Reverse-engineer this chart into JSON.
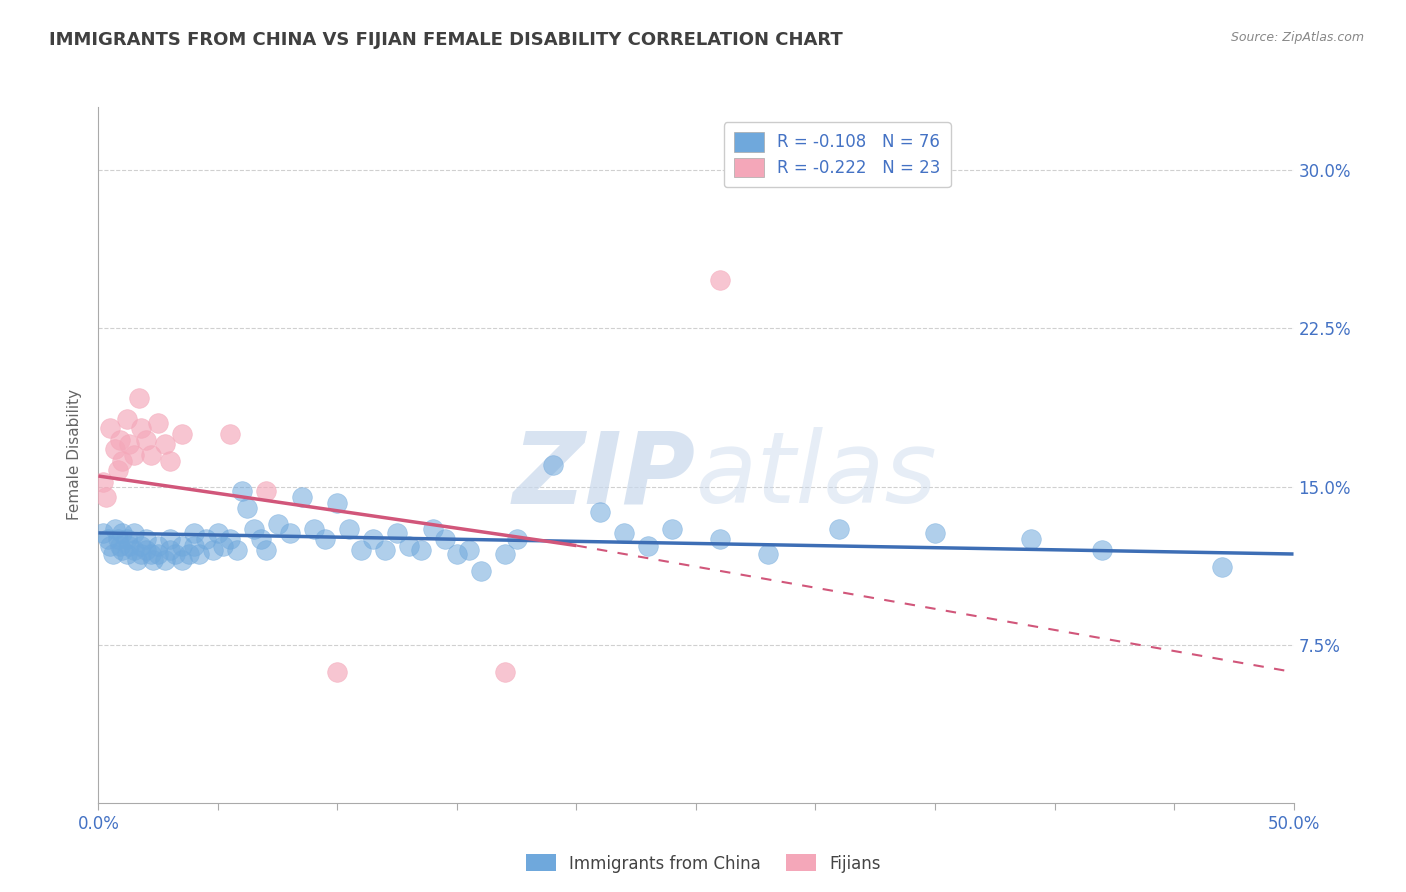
{
  "title": "IMMIGRANTS FROM CHINA VS FIJIAN FEMALE DISABILITY CORRELATION CHART",
  "source": "Source: ZipAtlas.com",
  "ylabel": "Female Disability",
  "ytick_labels": [
    "7.5%",
    "15.0%",
    "22.5%",
    "30.0%"
  ],
  "ytick_values": [
    0.075,
    0.15,
    0.225,
    0.3
  ],
  "xlim": [
    0.0,
    0.5
  ],
  "ylim": [
    0.0,
    0.33
  ],
  "legend_blue_r": "R = -0.108",
  "legend_blue_n": "N = 76",
  "legend_pink_r": "R = -0.222",
  "legend_pink_n": "N = 23",
  "color_blue": "#6fa8dc",
  "color_pink": "#f4a7b9",
  "color_blue_line": "#3d6eb5",
  "color_pink_line": "#d1567a",
  "scatter_blue": [
    [
      0.002,
      0.128
    ],
    [
      0.004,
      0.125
    ],
    [
      0.005,
      0.122
    ],
    [
      0.006,
      0.118
    ],
    [
      0.007,
      0.13
    ],
    [
      0.008,
      0.125
    ],
    [
      0.009,
      0.122
    ],
    [
      0.01,
      0.128
    ],
    [
      0.01,
      0.12
    ],
    [
      0.012,
      0.125
    ],
    [
      0.012,
      0.118
    ],
    [
      0.013,
      0.122
    ],
    [
      0.015,
      0.128
    ],
    [
      0.015,
      0.12
    ],
    [
      0.016,
      0.115
    ],
    [
      0.018,
      0.122
    ],
    [
      0.018,
      0.118
    ],
    [
      0.02,
      0.125
    ],
    [
      0.02,
      0.12
    ],
    [
      0.022,
      0.118
    ],
    [
      0.023,
      0.115
    ],
    [
      0.025,
      0.122
    ],
    [
      0.025,
      0.118
    ],
    [
      0.028,
      0.115
    ],
    [
      0.03,
      0.125
    ],
    [
      0.03,
      0.12
    ],
    [
      0.032,
      0.118
    ],
    [
      0.035,
      0.122
    ],
    [
      0.035,
      0.115
    ],
    [
      0.038,
      0.118
    ],
    [
      0.04,
      0.128
    ],
    [
      0.04,
      0.122
    ],
    [
      0.042,
      0.118
    ],
    [
      0.045,
      0.125
    ],
    [
      0.048,
      0.12
    ],
    [
      0.05,
      0.128
    ],
    [
      0.052,
      0.122
    ],
    [
      0.055,
      0.125
    ],
    [
      0.058,
      0.12
    ],
    [
      0.06,
      0.148
    ],
    [
      0.062,
      0.14
    ],
    [
      0.065,
      0.13
    ],
    [
      0.068,
      0.125
    ],
    [
      0.07,
      0.12
    ],
    [
      0.075,
      0.132
    ],
    [
      0.08,
      0.128
    ],
    [
      0.085,
      0.145
    ],
    [
      0.09,
      0.13
    ],
    [
      0.095,
      0.125
    ],
    [
      0.1,
      0.142
    ],
    [
      0.105,
      0.13
    ],
    [
      0.11,
      0.12
    ],
    [
      0.115,
      0.125
    ],
    [
      0.12,
      0.12
    ],
    [
      0.125,
      0.128
    ],
    [
      0.13,
      0.122
    ],
    [
      0.135,
      0.12
    ],
    [
      0.14,
      0.13
    ],
    [
      0.145,
      0.125
    ],
    [
      0.15,
      0.118
    ],
    [
      0.155,
      0.12
    ],
    [
      0.16,
      0.11
    ],
    [
      0.17,
      0.118
    ],
    [
      0.175,
      0.125
    ],
    [
      0.19,
      0.16
    ],
    [
      0.21,
      0.138
    ],
    [
      0.22,
      0.128
    ],
    [
      0.23,
      0.122
    ],
    [
      0.24,
      0.13
    ],
    [
      0.26,
      0.125
    ],
    [
      0.28,
      0.118
    ],
    [
      0.31,
      0.13
    ],
    [
      0.35,
      0.128
    ],
    [
      0.39,
      0.125
    ],
    [
      0.42,
      0.12
    ],
    [
      0.47,
      0.112
    ]
  ],
  "scatter_pink": [
    [
      0.002,
      0.152
    ],
    [
      0.003,
      0.145
    ],
    [
      0.005,
      0.178
    ],
    [
      0.007,
      0.168
    ],
    [
      0.008,
      0.158
    ],
    [
      0.009,
      0.172
    ],
    [
      0.01,
      0.162
    ],
    [
      0.012,
      0.182
    ],
    [
      0.013,
      0.17
    ],
    [
      0.015,
      0.165
    ],
    [
      0.017,
      0.192
    ],
    [
      0.018,
      0.178
    ],
    [
      0.02,
      0.172
    ],
    [
      0.022,
      0.165
    ],
    [
      0.025,
      0.18
    ],
    [
      0.028,
      0.17
    ],
    [
      0.03,
      0.162
    ],
    [
      0.035,
      0.175
    ],
    [
      0.055,
      0.175
    ],
    [
      0.07,
      0.148
    ],
    [
      0.1,
      0.062
    ],
    [
      0.17,
      0.062
    ],
    [
      0.26,
      0.248
    ]
  ],
  "trendline_blue_x0": 0.0,
  "trendline_blue_y0": 0.128,
  "trendline_blue_x1": 0.5,
  "trendline_blue_y1": 0.118,
  "trendline_pink_solid_x0": 0.0,
  "trendline_pink_solid_y0": 0.155,
  "trendline_pink_solid_x1": 0.2,
  "trendline_pink_solid_y1": 0.122,
  "trendline_pink_dash_x0": 0.2,
  "trendline_pink_dash_y0": 0.122,
  "trendline_pink_dash_x1": 0.5,
  "trendline_pink_dash_y1": 0.062,
  "watermark_zip": "ZIP",
  "watermark_atlas": "atlas",
  "background_color": "#ffffff",
  "axis_label_color": "#4472c4",
  "title_color": "#404040",
  "grid_color": "#d0d0d0"
}
